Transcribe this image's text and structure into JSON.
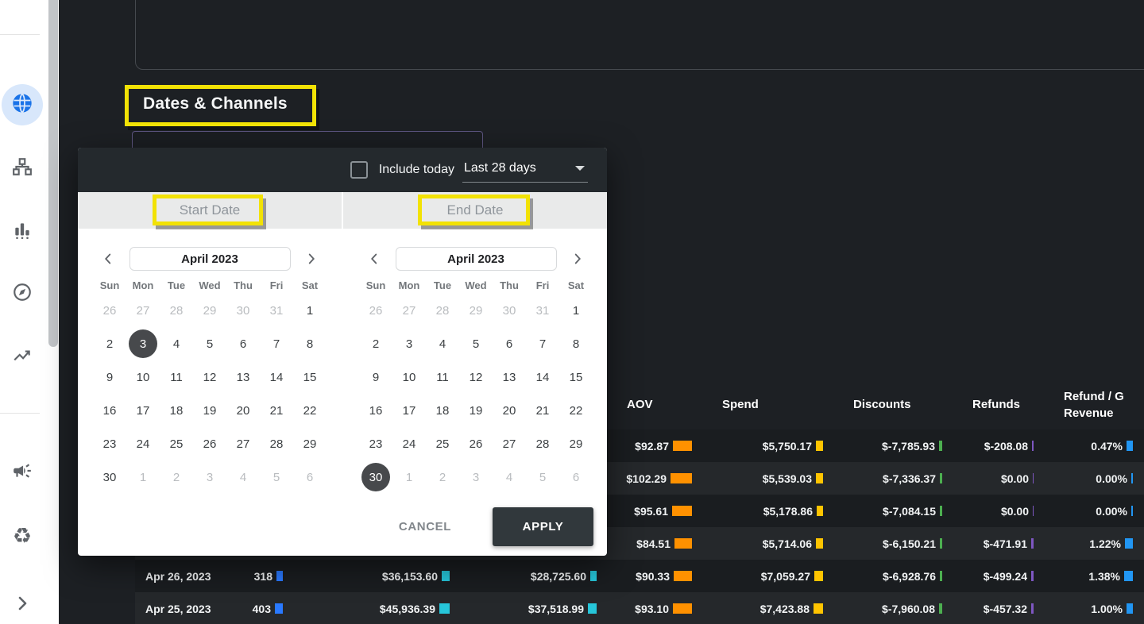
{
  "section_title": "Dates & Channels",
  "sidebar": {
    "items": [
      {
        "icon": "globe-icon",
        "active": true
      },
      {
        "icon": "hierarchy-icon",
        "active": false
      },
      {
        "icon": "bar-chart-icon",
        "active": false
      },
      {
        "icon": "compass-icon",
        "active": false
      },
      {
        "icon": "trending-up-icon",
        "active": false
      },
      {
        "icon": "megaphone-icon",
        "active": false
      },
      {
        "icon": "recycle-icon",
        "active": false
      }
    ],
    "expand_icon": "chevron-right-icon"
  },
  "datepicker": {
    "include_today_label": "Include today",
    "preset_value": "Last 28 days",
    "start_label": "Start Date",
    "end_label": "End Date",
    "cancel_label": "CANCEL",
    "apply_label": "APPLY",
    "day_headers": [
      "Sun",
      "Mon",
      "Tue",
      "Wed",
      "Thu",
      "Fri",
      "Sat"
    ],
    "calendars": [
      {
        "month": "April 2023",
        "selected_day": 3,
        "weeks": [
          [
            [
              26,
              0,
              0
            ],
            [
              27,
              0,
              0
            ],
            [
              28,
              0,
              0
            ],
            [
              29,
              0,
              0
            ],
            [
              30,
              0,
              0
            ],
            [
              31,
              0,
              0
            ],
            [
              1,
              1,
              0
            ]
          ],
          [
            [
              2,
              1,
              0
            ],
            [
              3,
              1,
              1
            ],
            [
              4,
              1,
              0
            ],
            [
              5,
              1,
              0
            ],
            [
              6,
              1,
              0
            ],
            [
              7,
              1,
              0
            ],
            [
              8,
              1,
              0
            ]
          ],
          [
            [
              9,
              1,
              0
            ],
            [
              10,
              1,
              0
            ],
            [
              11,
              1,
              0
            ],
            [
              12,
              1,
              0
            ],
            [
              13,
              1,
              0
            ],
            [
              14,
              1,
              0
            ],
            [
              15,
              1,
              0
            ]
          ],
          [
            [
              16,
              1,
              0
            ],
            [
              17,
              1,
              0
            ],
            [
              18,
              1,
              0
            ],
            [
              19,
              1,
              0
            ],
            [
              20,
              1,
              0
            ],
            [
              21,
              1,
              0
            ],
            [
              22,
              1,
              0
            ]
          ],
          [
            [
              23,
              1,
              0
            ],
            [
              24,
              1,
              0
            ],
            [
              25,
              1,
              0
            ],
            [
              26,
              1,
              0
            ],
            [
              27,
              1,
              0
            ],
            [
              28,
              1,
              0
            ],
            [
              29,
              1,
              0
            ]
          ],
          [
            [
              30,
              1,
              0
            ],
            [
              1,
              0,
              0
            ],
            [
              2,
              0,
              0
            ],
            [
              3,
              0,
              0
            ],
            [
              4,
              0,
              0
            ],
            [
              5,
              0,
              0
            ],
            [
              6,
              0,
              0
            ]
          ]
        ]
      },
      {
        "month": "April 2023",
        "selected_day": 30,
        "weeks": [
          [
            [
              26,
              0,
              0
            ],
            [
              27,
              0,
              0
            ],
            [
              28,
              0,
              0
            ],
            [
              29,
              0,
              0
            ],
            [
              30,
              0,
              0
            ],
            [
              31,
              0,
              0
            ],
            [
              1,
              1,
              0
            ]
          ],
          [
            [
              2,
              1,
              0
            ],
            [
              3,
              1,
              0
            ],
            [
              4,
              1,
              0
            ],
            [
              5,
              1,
              0
            ],
            [
              6,
              1,
              0
            ],
            [
              7,
              1,
              0
            ],
            [
              8,
              1,
              0
            ]
          ],
          [
            [
              9,
              1,
              0
            ],
            [
              10,
              1,
              0
            ],
            [
              11,
              1,
              0
            ],
            [
              12,
              1,
              0
            ],
            [
              13,
              1,
              0
            ],
            [
              14,
              1,
              0
            ],
            [
              15,
              1,
              0
            ]
          ],
          [
            [
              16,
              1,
              0
            ],
            [
              17,
              1,
              0
            ],
            [
              18,
              1,
              0
            ],
            [
              19,
              1,
              0
            ],
            [
              20,
              1,
              0
            ],
            [
              21,
              1,
              0
            ],
            [
              22,
              1,
              0
            ]
          ],
          [
            [
              23,
              1,
              0
            ],
            [
              24,
              1,
              0
            ],
            [
              25,
              1,
              0
            ],
            [
              26,
              1,
              0
            ],
            [
              27,
              1,
              0
            ],
            [
              28,
              1,
              0
            ],
            [
              29,
              1,
              0
            ]
          ],
          [
            [
              30,
              1,
              1
            ],
            [
              1,
              0,
              0
            ],
            [
              2,
              0,
              0
            ],
            [
              3,
              0,
              0
            ],
            [
              4,
              0,
              0
            ],
            [
              5,
              0,
              0
            ],
            [
              6,
              0,
              0
            ]
          ]
        ]
      }
    ]
  },
  "table": {
    "columns": [
      {
        "name": "date",
        "align": "left",
        "bar": null
      },
      {
        "name": "col2",
        "align": "right",
        "bar": "#2979ff"
      },
      {
        "name": "col3",
        "align": "right",
        "bar": "#26c6da"
      },
      {
        "name": "col4",
        "align": "right",
        "bar": "#26c6da"
      },
      {
        "name": "aov",
        "align": "right",
        "bar": "#ff9100"
      },
      {
        "name": "spend",
        "align": "right",
        "bar": "#ffc400"
      },
      {
        "name": "discounts",
        "align": "right",
        "bar": "#4caf50"
      },
      {
        "name": "refunds",
        "align": "right",
        "bar": "#7e57c2"
      },
      {
        "name": "refund-pct",
        "align": "right",
        "bar": "#2196f3"
      }
    ],
    "headers": [
      "",
      "",
      "",
      "",
      "AOV",
      "Spend",
      "Discounts",
      "Refunds",
      "Refund / G\nRevenue"
    ],
    "rows": [
      {
        "cells": [
          "",
          "",
          "",
          "",
          "$92.87",
          "$5,750.17",
          "$-7,785.93",
          "$-208.08",
          "0.47%"
        ],
        "bars": [
          0,
          0,
          0,
          0,
          24,
          9,
          4,
          2,
          8
        ]
      },
      {
        "cells": [
          "",
          "",
          "",
          "",
          "$102.29",
          "$5,539.03",
          "$-7,336.37",
          "$0.00",
          "0.00%"
        ],
        "bars": [
          0,
          0,
          0,
          0,
          27,
          9,
          3,
          1,
          2
        ]
      },
      {
        "cells": [
          "",
          "",
          "",
          "",
          "$95.61",
          "$5,178.86",
          "$-7,084.15",
          "$0.00",
          "0.00%"
        ],
        "bars": [
          0,
          0,
          0,
          0,
          25,
          8,
          3,
          1,
          2
        ]
      },
      {
        "cells": [
          "",
          "",
          "",
          "",
          "$84.51",
          "$5,714.06",
          "$-6,150.21",
          "$-471.91",
          "1.22%"
        ],
        "bars": [
          0,
          0,
          0,
          0,
          22,
          9,
          3,
          3,
          10
        ]
      },
      {
        "cells": [
          "Apr 26, 2023",
          "318",
          "$36,153.60",
          "$28,725.60",
          "$90.33",
          "$7,059.27",
          "$-6,928.76",
          "$-499.24",
          "1.38%"
        ],
        "bars": [
          0,
          8,
          10,
          8,
          23,
          11,
          3,
          3,
          11
        ]
      },
      {
        "cells": [
          "Apr 25, 2023",
          "403",
          "$45,936.39",
          "$37,518.99",
          "$93.10",
          "$7,423.88",
          "$-7,960.08",
          "$-457.32",
          "1.00%"
        ],
        "bars": [
          0,
          10,
          13,
          11,
          24,
          12,
          4,
          3,
          8
        ]
      }
    ]
  },
  "colors": {
    "highlight_yellow": "#f2e205",
    "active_icon_blue": "#1a73e8",
    "popup_header_dark": "#24292d"
  }
}
